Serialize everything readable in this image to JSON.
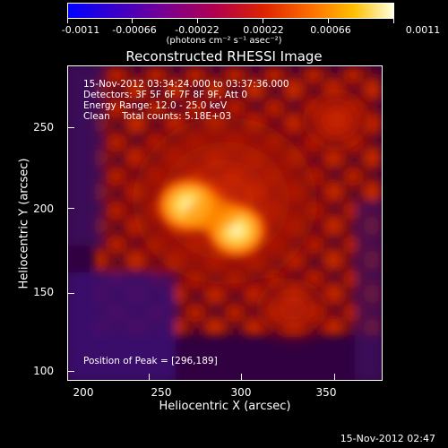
{
  "colorbar": {
    "ticks": [
      "-0.0011",
      "-0.00066",
      "-0.00022",
      "0.00022",
      "0.00066",
      "0.0011"
    ],
    "unit": "(photons cm⁻² s⁻¹ asec⁻²)"
  },
  "title": "Reconstructed RHESSI Image",
  "info": {
    "time": "15-Nov-2012 03:34:24.000 to 03:37:36.000",
    "detectors": "Detectors: 3F 5F 6F 7F 8F 9F, Att 0",
    "energy": "Energy Range: 12.0 - 25.0 keV",
    "clean": "Clean    Total counts: 5.18E+03"
  },
  "peak": "Position of Peak = [296,189]",
  "axes": {
    "xlabel": "Heliocentric X (arcsec)",
    "ylabel": "Heliocentric Y (arcsec)",
    "xticks": [
      "200",
      "250",
      "300",
      "350"
    ],
    "yticks": [
      "100",
      "150",
      "200",
      "250"
    ]
  },
  "timestamp": "15-Nov-2012 02:47"
}
